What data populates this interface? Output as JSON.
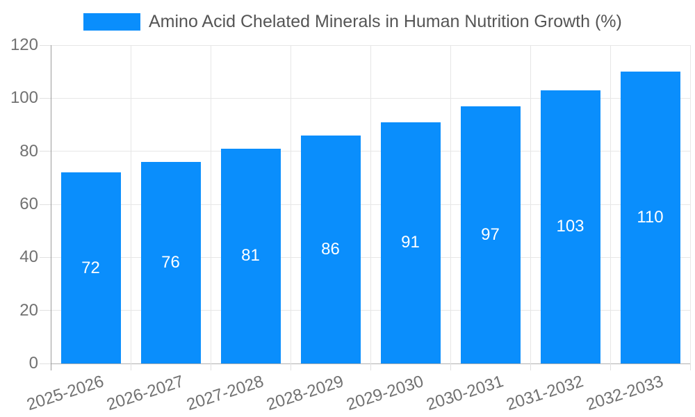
{
  "chart_data": {
    "type": "bar",
    "title": "Amino Acid Chelated Minerals in Human Nutrition Growth (%)",
    "categories": [
      "2025-2026",
      "2026-2027",
      "2027-2028",
      "2028-2029",
      "2029-2030",
      "2030-2031",
      "2031-2032",
      "2032-2033"
    ],
    "values": [
      72,
      76,
      81,
      86,
      91,
      97,
      103,
      110
    ],
    "xlabel": "",
    "ylabel": "",
    "ylim": [
      0,
      120
    ],
    "yticks": [
      0,
      20,
      40,
      60,
      80,
      100,
      120
    ],
    "grid": true,
    "legend_position": "top-center",
    "value_labels": "inside-center",
    "colors": {
      "bar": "#0a8efc",
      "value_label": "#ffffff",
      "title": "#555555",
      "axis_tick_label": "#717171",
      "gridline": "#e6e6e6",
      "baseline": "#b0b0b0",
      "axis_line": "#9a9a9a",
      "tick_mark": "#e0e0e0",
      "background": "#ffffff"
    }
  }
}
